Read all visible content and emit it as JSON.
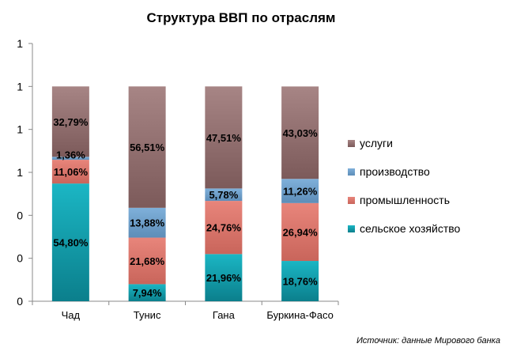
{
  "chart_data": {
    "type": "bar",
    "stacked": true,
    "title": "Структура ВВП по отраслям",
    "categories": [
      "Чад",
      "Тунис",
      "Гана",
      "Буркина-Фасо"
    ],
    "y_tick_labels": [
      "0",
      "0",
      "0",
      "1",
      "1",
      "1",
      "1"
    ],
    "ylim": [
      0,
      1.2
    ],
    "grid": false,
    "legend_position": "right",
    "series": [
      {
        "name": "сельское хозяйство",
        "color": "#0a9aaa",
        "values": [
          0.548,
          0.0794,
          0.2196,
          0.1876
        ],
        "labels": [
          "54,80%",
          "7,94%",
          "21,96%",
          "18,76%"
        ]
      },
      {
        "name": "промышленность",
        "color": "#d86e64",
        "values": [
          0.1106,
          0.2168,
          0.2476,
          0.2694
        ],
        "labels": [
          "11,06%",
          "21,68%",
          "24,76%",
          "26,94%"
        ]
      },
      {
        "name": "производство",
        "color": "#6a9cc8",
        "values": [
          0.0136,
          0.1388,
          0.0578,
          0.1126
        ],
        "labels": [
          "1,36%",
          "13,88%",
          "5,78%",
          "11,26%"
        ]
      },
      {
        "name": "услуги",
        "color": "#9e7a7a",
        "values": [
          0.3279,
          0.5651,
          0.4751,
          0.4303
        ],
        "labels": [
          "32,79%",
          "56,51%",
          "47,51%",
          "43,03%"
        ]
      }
    ],
    "source_note": "Источник: данные Мирового банка"
  }
}
